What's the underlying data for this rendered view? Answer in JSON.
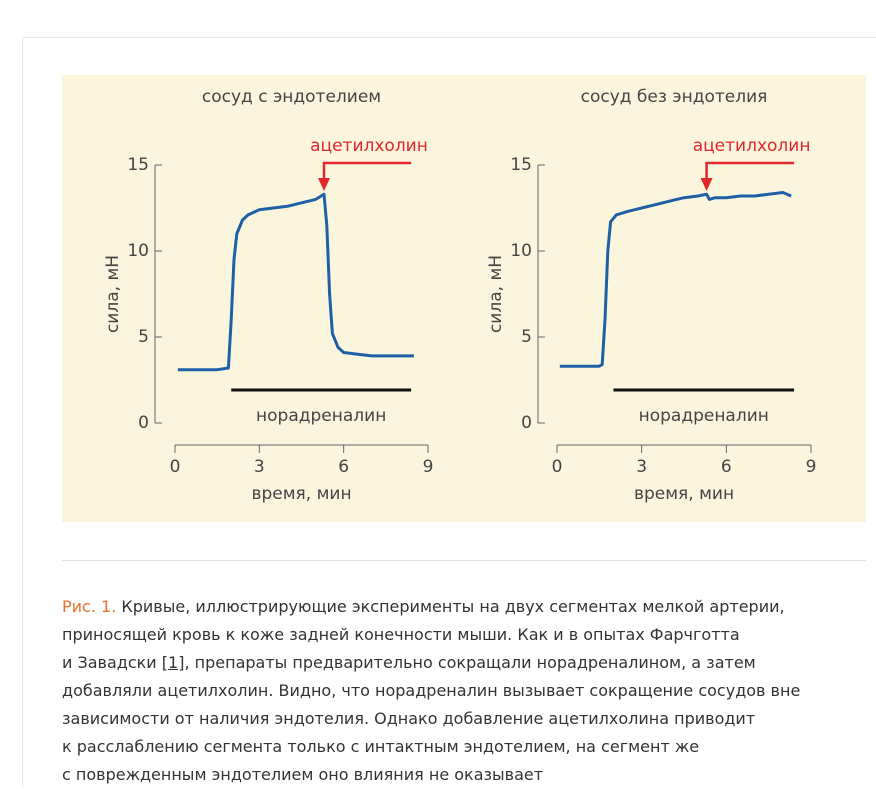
{
  "chart_data": [
    {
      "type": "line",
      "title": "сосуд с эндотелием",
      "x_label": "время, мин",
      "y_label": "сила, мН",
      "x": [
        0.1,
        0.5,
        1,
        1.5,
        1.9,
        2.0,
        2.1,
        2.2,
        2.4,
        2.6,
        3,
        3.5,
        4,
        4.5,
        5,
        5.2,
        5.3,
        5.4,
        5.5,
        5.6,
        5.8,
        6,
        6.5,
        7,
        7.5,
        8,
        8.5
      ],
      "series": [
        {
          "color": "#1f5fa6",
          "values": [
            3.1,
            3.1,
            3.1,
            3.1,
            3.2,
            6,
            9.5,
            11,
            11.8,
            12.1,
            12.4,
            12.5,
            12.6,
            12.8,
            13,
            13.2,
            13.3,
            11.5,
            7.5,
            5.2,
            4.4,
            4.1,
            4.0,
            3.9,
            3.9,
            3.9,
            3.9
          ]
        }
      ],
      "xlim": [
        0,
        9
      ],
      "ylim": [
        0,
        15
      ],
      "xticks": [
        0,
        3,
        6,
        9
      ],
      "yticks": [
        0,
        5,
        10,
        15
      ],
      "arrow_annotation": {
        "text": "ацетилхолин",
        "x": 5.3,
        "color": "#e3262c"
      },
      "span_annotation": {
        "text": "норадреналин",
        "x": [
          2,
          8.4
        ]
      }
    },
    {
      "type": "line",
      "title": "сосуд без эндотелия",
      "x_label": "время, мин",
      "y_label": "сила, мН",
      "x": [
        0.1,
        0.5,
        1,
        1.5,
        1.6,
        1.7,
        1.8,
        1.9,
        2.1,
        2.5,
        3,
        3.5,
        4,
        4.5,
        5,
        5.3,
        5.4,
        5.6,
        6,
        6.5,
        7,
        7.5,
        8,
        8.3
      ],
      "series": [
        {
          "color": "#1f5fa6",
          "values": [
            3.3,
            3.3,
            3.3,
            3.3,
            3.4,
            6,
            10,
            11.7,
            12.1,
            12.3,
            12.5,
            12.7,
            12.9,
            13.1,
            13.2,
            13.3,
            13.0,
            13.1,
            13.1,
            13.2,
            13.2,
            13.3,
            13.4,
            13.2
          ]
        }
      ],
      "xlim": [
        0,
        9
      ],
      "ylim": [
        0,
        15
      ],
      "xticks": [
        0,
        3,
        6,
        9
      ],
      "yticks": [
        0,
        5,
        10,
        15
      ],
      "arrow_annotation": {
        "text": "ацетилхолин",
        "x": 5.3,
        "color": "#e3262c"
      },
      "span_annotation": {
        "text": "норадреналин",
        "x": [
          2,
          8.4
        ]
      }
    }
  ],
  "caption": {
    "label": "Рис. 1.",
    "lines": [
      "Кривые, иллюстрирующие эксперименты на двух сегментах мелкой артерии,",
      "приносящей кровь к коже задней конечности мыши. Как и в опытах Фарчготта",
      {
        "before": "и Завадски ",
        "ref": "[1]",
        "after": ", препараты предварительно сокращали норадреналином, а затем"
      },
      "добавляли ацетилхолин. Видно, что норадреналин вызывает сокращение сосудов вне",
      "зависимости от наличия эндотелия. Однако добавление ацетилхолина приводит",
      "к расслаблению сегмента только с интактным эндотелием, на сегмент же",
      "с поврежденным эндотелием оно влияния не оказывает"
    ]
  }
}
